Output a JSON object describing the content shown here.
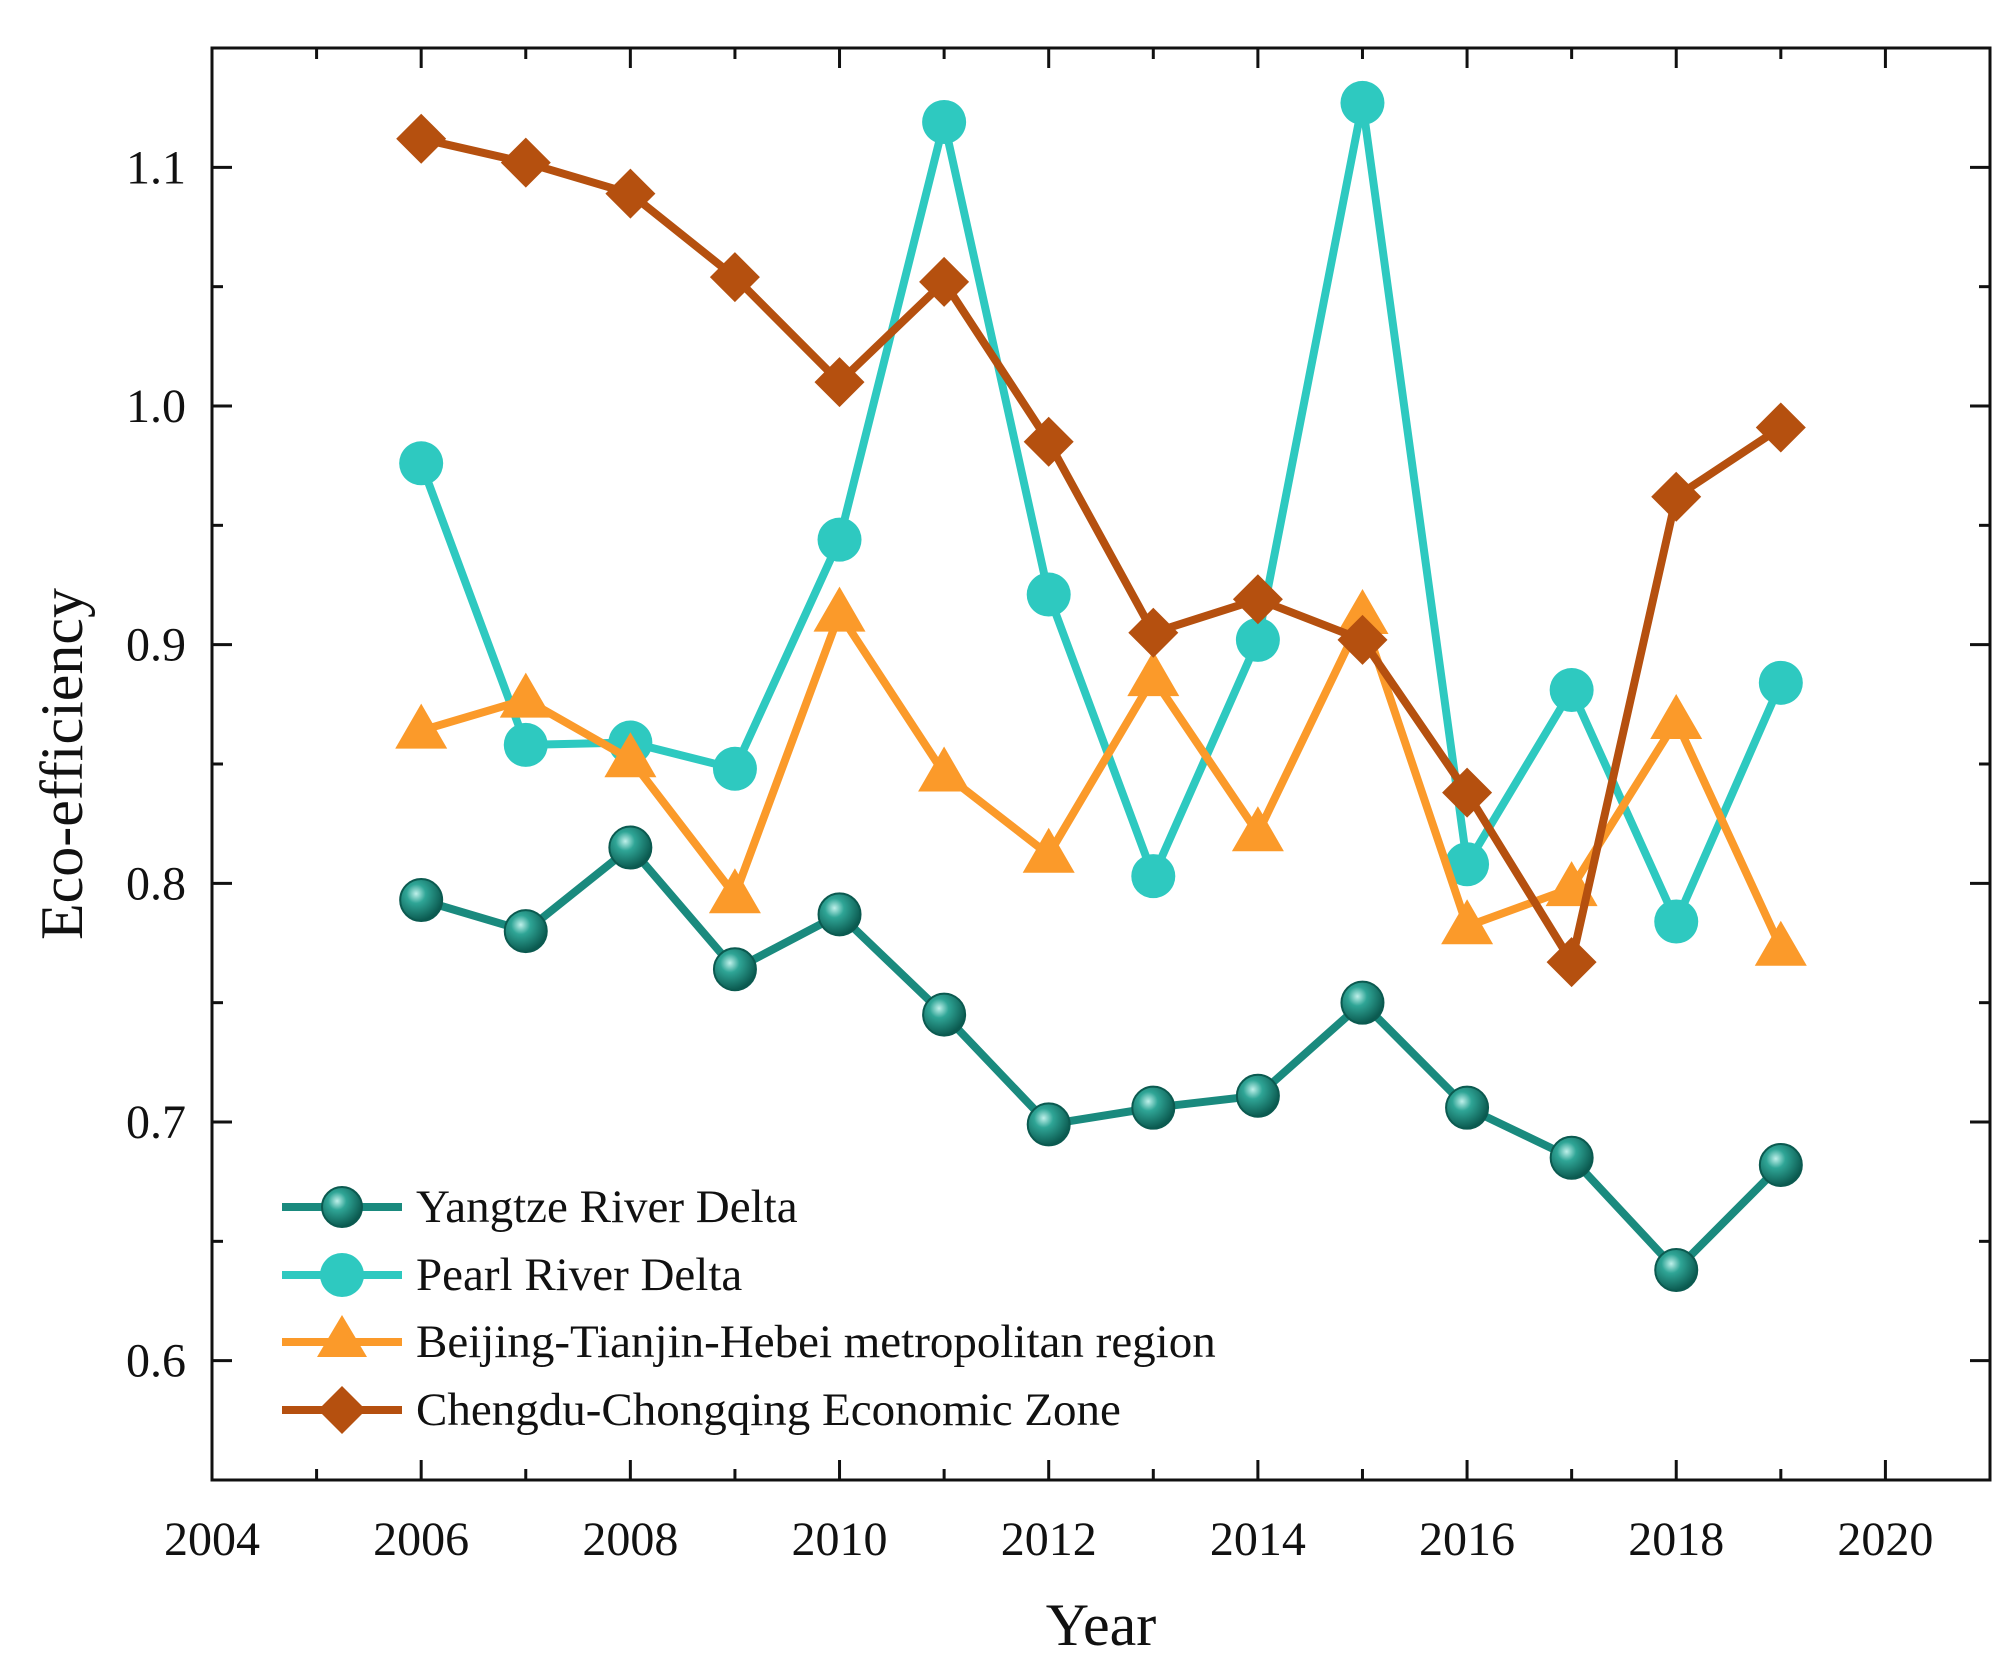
{
  "chart_data": {
    "type": "line",
    "xlabel": "Year",
    "ylabel": "Eco-efficiency",
    "xlim": [
      2004,
      2021
    ],
    "ylim": [
      0.55,
      1.15
    ],
    "xticks": [
      2004,
      2006,
      2008,
      2010,
      2012,
      2014,
      2016,
      2018,
      2020
    ],
    "xtick_labels": [
      "2004",
      "2006",
      "2008",
      "2010",
      "2012",
      "2014",
      "2016",
      "2018",
      "2020"
    ],
    "yticks": [
      0.6,
      0.7,
      0.8,
      0.9,
      1.0,
      1.1
    ],
    "ytick_labels": [
      "0.6",
      "0.7",
      "0.8",
      "0.9",
      "1.0",
      "1.1"
    ],
    "grid": false,
    "legend_position": "bottom-left",
    "x": [
      2006,
      2007,
      2008,
      2009,
      2010,
      2011,
      2012,
      2013,
      2014,
      2015,
      2016,
      2017,
      2018,
      2019
    ],
    "series": [
      {
        "name": "Yangtze River Delta",
        "color": "#1a8a7e",
        "marker": "sphere",
        "values": [
          0.793,
          0.78,
          0.815,
          0.764,
          0.787,
          0.745,
          0.699,
          0.706,
          0.711,
          0.75,
          0.706,
          0.685,
          0.638,
          0.682
        ]
      },
      {
        "name": "Pearl River Delta",
        "color": "#2ec9c0",
        "marker": "circle",
        "values": [
          0.976,
          0.858,
          0.859,
          0.848,
          0.944,
          1.119,
          0.921,
          0.803,
          0.902,
          1.127,
          0.808,
          0.881,
          0.784,
          0.884
        ]
      },
      {
        "name": "Beijing-Tianjin-Hebei metropolitan region",
        "color": "#fb9a2a",
        "marker": "triangle",
        "values": [
          0.864,
          0.877,
          0.852,
          0.795,
          0.913,
          0.846,
          0.812,
          0.886,
          0.821,
          0.912,
          0.782,
          0.798,
          0.868,
          0.773
        ]
      },
      {
        "name": "Chengdu-Chongqing Economic Zone",
        "color": "#b5500f",
        "marker": "diamond",
        "values": [
          1.112,
          1.102,
          1.089,
          1.054,
          1.01,
          1.052,
          0.985,
          0.905,
          0.919,
          0.902,
          0.838,
          0.767,
          0.962,
          0.991
        ]
      }
    ]
  }
}
